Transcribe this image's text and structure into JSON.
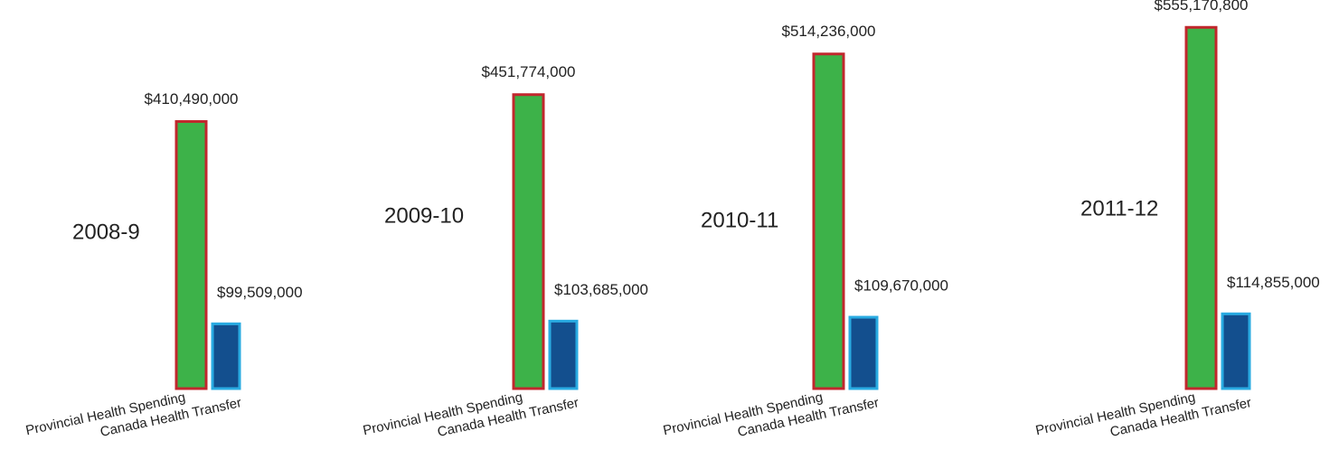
{
  "chart_data": [
    {
      "type": "bar",
      "title": "2008-9",
      "categories": [
        "Provincial Health Spending",
        "Canada Health Transfer"
      ],
      "values": [
        410490000,
        99509000
      ],
      "value_labels": [
        "$410,490,000",
        "$99,509,000"
      ],
      "colors": [
        "#3db249",
        "#134f8e"
      ],
      "edge_colors": [
        "#c1272d",
        "#29abe2"
      ]
    },
    {
      "type": "bar",
      "title": "2009-10",
      "categories": [
        "Provincial Health Spending",
        "Canada Health Transfer"
      ],
      "values": [
        451774000,
        103685000
      ],
      "value_labels": [
        "$451,774,000",
        "$103,685,000"
      ],
      "colors": [
        "#3db249",
        "#134f8e"
      ],
      "edge_colors": [
        "#c1272d",
        "#29abe2"
      ]
    },
    {
      "type": "bar",
      "title": "2010-11",
      "categories": [
        "Provincial Health Spending",
        "Canada Health Transfer"
      ],
      "values": [
        514236000,
        109670000
      ],
      "value_labels": [
        "$514,236,000",
        "$109,670,000"
      ],
      "colors": [
        "#3db249",
        "#134f8e"
      ],
      "edge_colors": [
        "#c1272d",
        "#29abe2"
      ]
    },
    {
      "type": "bar",
      "title": "2011-12",
      "categories": [
        "Provincial Health Spending",
        "Canada Health Transfer"
      ],
      "values": [
        555170800,
        114855000
      ],
      "value_labels": [
        "$555,170,800",
        "$114,855,000"
      ],
      "colors": [
        "#3db249",
        "#134f8e"
      ],
      "edge_colors": [
        "#c1272d",
        "#29abe2"
      ]
    }
  ]
}
